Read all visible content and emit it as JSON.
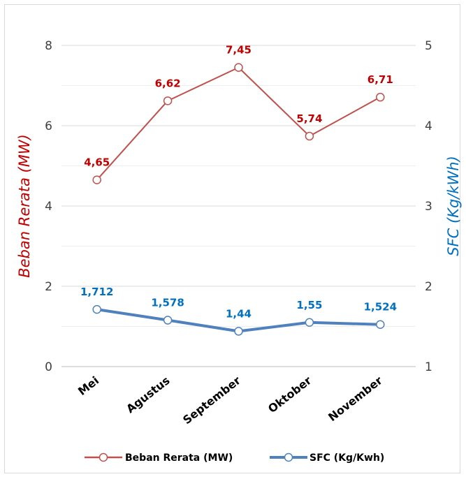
{
  "chart_data": {
    "type": "line",
    "categories": [
      "Mei",
      "Agustus",
      "September",
      "Oktober",
      "November"
    ],
    "series": [
      {
        "name": "Beban Rerata (MW)",
        "axis": "left",
        "values": [
          4.65,
          6.62,
          7.45,
          5.74,
          6.71
        ],
        "labels": [
          "4,65",
          "6,62",
          "7,45",
          "5,74",
          "6,71"
        ],
        "color": "#c0504d"
      },
      {
        "name": "SFC (Kg/Kwh)",
        "axis": "right",
        "values": [
          1.712,
          1.578,
          1.44,
          1.55,
          1.524
        ],
        "labels": [
          "1,712",
          "1,578",
          "1,44",
          "1,55",
          "1,524"
        ],
        "color": "#4f81bd"
      }
    ],
    "ylabel": "Beban Rerata (MW)",
    "y2label": "SFC (Kg/kWh)",
    "ylim": [
      0,
      8
    ],
    "y2lim": [
      1,
      5
    ],
    "yticks": [
      "0",
      "2",
      "4",
      "6",
      "8"
    ],
    "y2ticks": [
      "1",
      "2",
      "3",
      "4",
      "5"
    ],
    "ylabel_color": "#c00000",
    "y2label_color": "#0070c0",
    "grid": true,
    "legend": "bottom"
  }
}
